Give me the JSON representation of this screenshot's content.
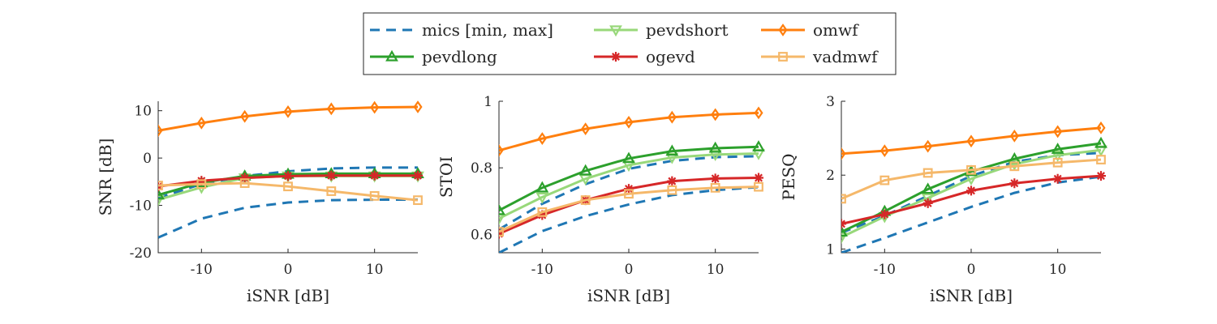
{
  "colors": {
    "mics": "#1f77b4",
    "pevdshort": "#98d87a",
    "pevdlong": "#2ca02c",
    "ogevd": "#d62728",
    "omwf": "#ff7f0e",
    "vadmwf": "#f5b86a"
  },
  "legend": {
    "placement": "top-center",
    "entries": [
      {
        "key": "mics",
        "label": "mics [min, max]",
        "marker": "none",
        "style": "dashed"
      },
      {
        "key": "pevdshort",
        "label": "pevdshort",
        "marker": "triangle-down"
      },
      {
        "key": "omwf",
        "label": "omwf",
        "marker": "diamond"
      },
      {
        "key": "pevdlong",
        "label": "pevdlong",
        "marker": "triangle-up"
      },
      {
        "key": "ogevd",
        "label": "ogevd",
        "marker": "star"
      },
      {
        "key": "vadmwf",
        "label": "vadmwf",
        "marker": "square"
      }
    ]
  },
  "chart_data": [
    {
      "type": "line",
      "ylabel": "SNR [dB]",
      "xlabel": "iSNR [dB]",
      "xlim": [
        -15,
        15
      ],
      "ylim": [
        -20,
        12
      ],
      "xticks": [
        -10,
        0,
        10
      ],
      "xtick_labels": [
        "-10",
        "0",
        "10"
      ],
      "yticks": [
        -20,
        -10,
        0,
        10
      ],
      "ytick_labels": [
        "-20",
        "-10",
        "0",
        "10"
      ],
      "grid": false,
      "x": [
        -15,
        -10,
        -5,
        0,
        5,
        10,
        15
      ],
      "mics": {
        "min": {
          "x": [
            -15,
            -10,
            -5,
            0,
            5,
            10,
            15
          ],
          "y": [
            -16.8,
            -12.8,
            -10.5,
            -9.4,
            -8.9,
            -8.8,
            -8.8
          ]
        },
        "max": {
          "x": [
            -15,
            -10,
            -5,
            0,
            5,
            10,
            15
          ],
          "y": [
            -8.4,
            -5.5,
            -3.8,
            -2.8,
            -2.2,
            -2.0,
            -2.0
          ]
        }
      },
      "series": [
        {
          "key": "pevdshort",
          "values": [
            -8.8,
            -6.2,
            -4.2,
            -3.8,
            -3.8,
            -3.8,
            -3.8
          ]
        },
        {
          "key": "pevdlong",
          "values": [
            -7.8,
            -5.2,
            -3.8,
            -3.4,
            -3.3,
            -3.3,
            -3.3
          ]
        },
        {
          "key": "ogevd",
          "values": [
            -6.0,
            -4.8,
            -4.2,
            -3.8,
            -3.7,
            -3.7,
            -3.7
          ]
        },
        {
          "key": "omwf",
          "values": [
            5.8,
            7.4,
            8.8,
            9.8,
            10.4,
            10.7,
            10.8
          ]
        },
        {
          "key": "vadmwf",
          "values": [
            -5.8,
            -5.5,
            -5.3,
            -6.0,
            -7.0,
            -8.0,
            -8.9
          ]
        }
      ]
    },
    {
      "type": "line",
      "ylabel": "STOI",
      "xlabel": "iSNR [dB]",
      "xlim": [
        -15,
        15
      ],
      "ylim": [
        0.545,
        1.0
      ],
      "xticks": [
        -10,
        0,
        10
      ],
      "xtick_labels": [
        "-10",
        "0",
        "10"
      ],
      "yticks": [
        0.6,
        0.8,
        1.0
      ],
      "ytick_labels": [
        "0.6",
        "0.8",
        "1"
      ],
      "grid": false,
      "x": [
        -15,
        -10,
        -5,
        0,
        5,
        10,
        15
      ],
      "mics": {
        "min": {
          "x": [
            -15,
            -10,
            -5,
            0,
            5,
            10,
            15
          ],
          "y": [
            0.545,
            0.61,
            0.655,
            0.69,
            0.718,
            0.733,
            0.742
          ]
        },
        "max": {
          "x": [
            -15,
            -10,
            -5,
            0,
            5,
            10,
            15
          ],
          "y": [
            0.615,
            0.692,
            0.751,
            0.797,
            0.821,
            0.832,
            0.835
          ]
        }
      },
      "series": [
        {
          "key": "pevdshort",
          "values": [
            0.648,
            0.712,
            0.767,
            0.808,
            0.831,
            0.84,
            0.843
          ]
        },
        {
          "key": "pevdlong",
          "values": [
            0.672,
            0.74,
            0.791,
            0.828,
            0.85,
            0.859,
            0.863
          ]
        },
        {
          "key": "ogevd",
          "values": [
            0.602,
            0.658,
            0.703,
            0.737,
            0.76,
            0.768,
            0.77
          ]
        },
        {
          "key": "omwf",
          "values": [
            0.852,
            0.888,
            0.917,
            0.937,
            0.952,
            0.96,
            0.965
          ]
        },
        {
          "key": "vadmwf",
          "values": [
            0.608,
            0.667,
            0.703,
            0.722,
            0.733,
            0.74,
            0.743
          ]
        }
      ]
    },
    {
      "type": "line",
      "ylabel": "PESQ",
      "xlabel": "iSNR [dB]",
      "xlim": [
        -15,
        15
      ],
      "ylim": [
        0.95,
        3.0
      ],
      "xticks": [
        -10,
        0,
        10
      ],
      "xtick_labels": [
        "-10",
        "0",
        "10"
      ],
      "yticks": [
        1,
        2,
        3
      ],
      "ytick_labels": [
        "1",
        "2",
        "3"
      ],
      "grid": false,
      "x": [
        -15,
        -10,
        -5,
        0,
        5,
        10,
        15
      ],
      "mics": {
        "min": {
          "x": [
            -15,
            -10,
            -5,
            0,
            5,
            10,
            15
          ],
          "y": [
            0.95,
            1.15,
            1.36,
            1.57,
            1.76,
            1.9,
            1.98
          ]
        },
        "max": {
          "x": [
            -15,
            -10,
            -5,
            0,
            5,
            10,
            15
          ],
          "y": [
            1.22,
            1.45,
            1.72,
            1.99,
            2.18,
            2.27,
            2.3
          ]
        }
      },
      "series": [
        {
          "key": "pevdshort",
          "values": [
            1.16,
            1.44,
            1.69,
            1.95,
            2.15,
            2.27,
            2.34
          ]
        },
        {
          "key": "pevdlong",
          "values": [
            1.23,
            1.51,
            1.81,
            2.05,
            2.22,
            2.35,
            2.43
          ]
        },
        {
          "key": "ogevd",
          "values": [
            1.34,
            1.47,
            1.62,
            1.79,
            1.89,
            1.95,
            1.99
          ]
        },
        {
          "key": "omwf",
          "values": [
            2.29,
            2.33,
            2.39,
            2.46,
            2.53,
            2.59,
            2.64
          ]
        },
        {
          "key": "vadmwf",
          "values": [
            1.68,
            1.93,
            2.03,
            2.07,
            2.12,
            2.17,
            2.21
          ]
        }
      ]
    }
  ]
}
